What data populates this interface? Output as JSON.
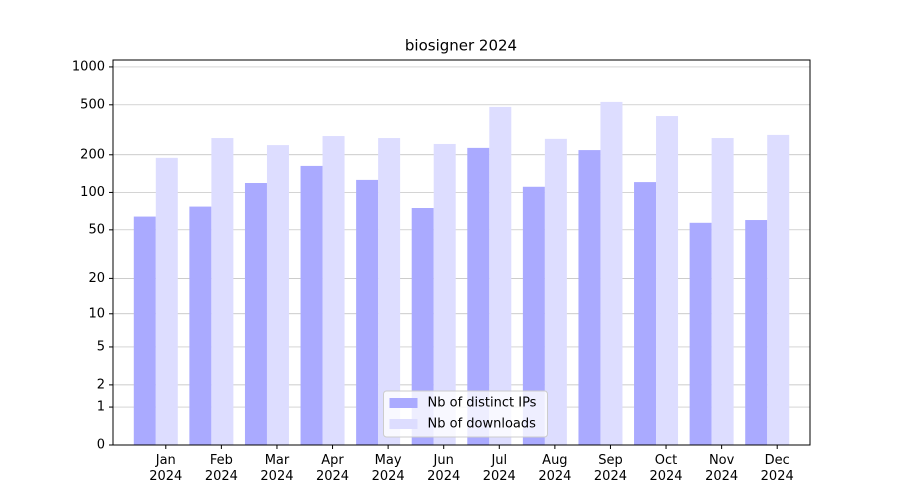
{
  "chart_data": {
    "type": "bar",
    "title": "biosigner 2024",
    "categories": [
      "Jan\n2024",
      "Feb\n2024",
      "Mar\n2024",
      "Apr\n2024",
      "May\n2024",
      "Jun\n2024",
      "Jul\n2024",
      "Aug\n2024",
      "Sep\n2024",
      "Oct\n2024",
      "Nov\n2024",
      "Dec\n2024"
    ],
    "series": [
      {
        "name": "Nb of distinct IPs",
        "color": "#aaaaff",
        "values": [
          64,
          77,
          119,
          163,
          126,
          75,
          227,
          111,
          218,
          121,
          57,
          60
        ]
      },
      {
        "name": "Nb of downloads",
        "color": "#ddddff",
        "values": [
          189,
          272,
          239,
          282,
          272,
          244,
          481,
          268,
          527,
          407,
          272,
          288
        ]
      }
    ],
    "yscale": "log1p",
    "ylim": [
      0,
      1135
    ],
    "yticks": [
      0,
      1,
      2,
      5,
      10,
      20,
      50,
      100,
      200,
      500,
      1000
    ],
    "grid": true,
    "legend": "lower center"
  }
}
